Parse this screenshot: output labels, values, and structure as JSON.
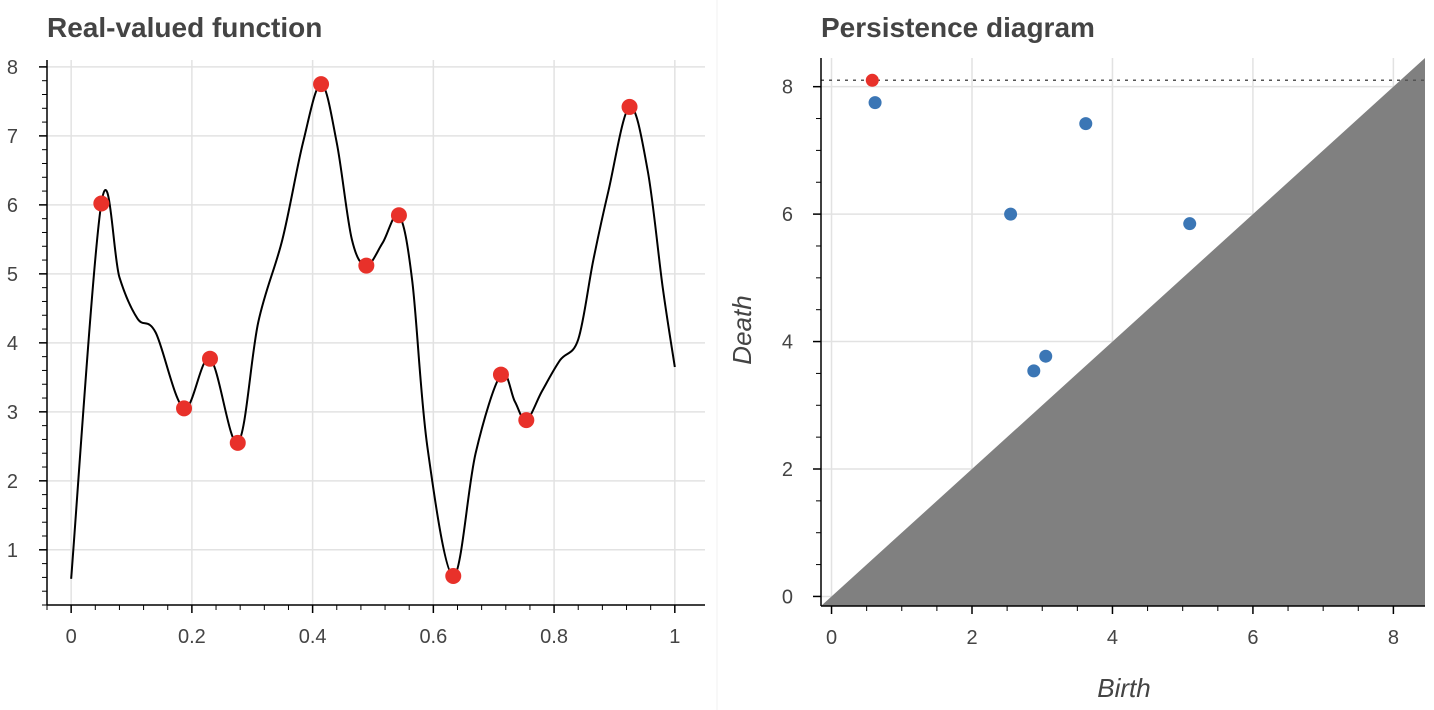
{
  "colors": {
    "curve": "#000000",
    "critical_point": "#e8312a",
    "finite_point": "#3b76b5",
    "infinite_point": "#e8312a",
    "diagonal_fill": "#808080",
    "grid": "#e2e2e2",
    "axis": "#000000",
    "text": "#444444"
  },
  "chart_data": [
    {
      "type": "line",
      "title": "Real-valued function",
      "xlabel": "",
      "ylabel": "",
      "xlim": [
        -0.04,
        1.05
      ],
      "ylim": [
        0.2,
        8.1
      ],
      "xticks": [
        0,
        0.2,
        0.4,
        0.6,
        0.8,
        1
      ],
      "xtick_labels": [
        "0",
        "0.2",
        "0.4",
        "0.6",
        "0.8",
        "1"
      ],
      "yticks": [
        1,
        2,
        3,
        4,
        5,
        6,
        7,
        8
      ],
      "ytick_labels": [
        "1",
        "2",
        "3",
        "4",
        "5",
        "6",
        "7",
        "8"
      ],
      "grid": true,
      "legend": "none",
      "curve": {
        "x": [
          0,
          0.05,
          0.08,
          0.11,
          0.14,
          0.187,
          0.23,
          0.276,
          0.31,
          0.35,
          0.384,
          0.414,
          0.44,
          0.465,
          0.489,
          0.516,
          0.543,
          0.565,
          0.59,
          0.633,
          0.67,
          0.712,
          0.735,
          0.754,
          0.78,
          0.81,
          0.84,
          0.865,
          0.89,
          0.925,
          0.955,
          0.98,
          1.0
        ],
        "y": [
          0.58,
          6.02,
          4.95,
          4.35,
          4.15,
          3.05,
          3.77,
          2.55,
          4.3,
          5.5,
          6.9,
          7.75,
          6.9,
          5.5,
          5.12,
          5.45,
          5.85,
          4.9,
          2.5,
          0.62,
          2.4,
          3.54,
          3.15,
          2.88,
          3.3,
          3.75,
          4.05,
          5.2,
          6.2,
          7.42,
          6.5,
          4.8,
          3.65
        ]
      },
      "critical_points": {
        "x": [
          0.05,
          0.187,
          0.23,
          0.276,
          0.414,
          0.489,
          0.543,
          0.633,
          0.712,
          0.754,
          0.925
        ],
        "y": [
          6.02,
          3.05,
          3.77,
          2.55,
          7.75,
          5.12,
          5.85,
          0.62,
          3.54,
          2.88,
          7.42
        ]
      }
    },
    {
      "type": "scatter",
      "title": "Persistence diagram",
      "xlabel": "Birth",
      "ylabel": "Death",
      "xlim": [
        -0.15,
        8.45
      ],
      "ylim": [
        -0.15,
        8.45
      ],
      "xticks": [
        0,
        2,
        4,
        6,
        8
      ],
      "xtick_labels": [
        "0",
        "2",
        "4",
        "6",
        "8"
      ],
      "yticks": [
        0,
        2,
        4,
        6,
        8
      ],
      "ytick_labels": [
        "0",
        "2",
        "4",
        "6",
        "8"
      ],
      "grid": true,
      "legend": "none",
      "infinite_line_y": 8.1,
      "finite_points": {
        "x": [
          0.62,
          2.55,
          2.88,
          3.05,
          3.62,
          5.1
        ],
        "y": [
          7.75,
          6.0,
          3.54,
          3.77,
          7.42,
          5.85
        ]
      },
      "infinite_points": {
        "x": [
          0.58
        ],
        "y": [
          8.1
        ]
      }
    }
  ]
}
